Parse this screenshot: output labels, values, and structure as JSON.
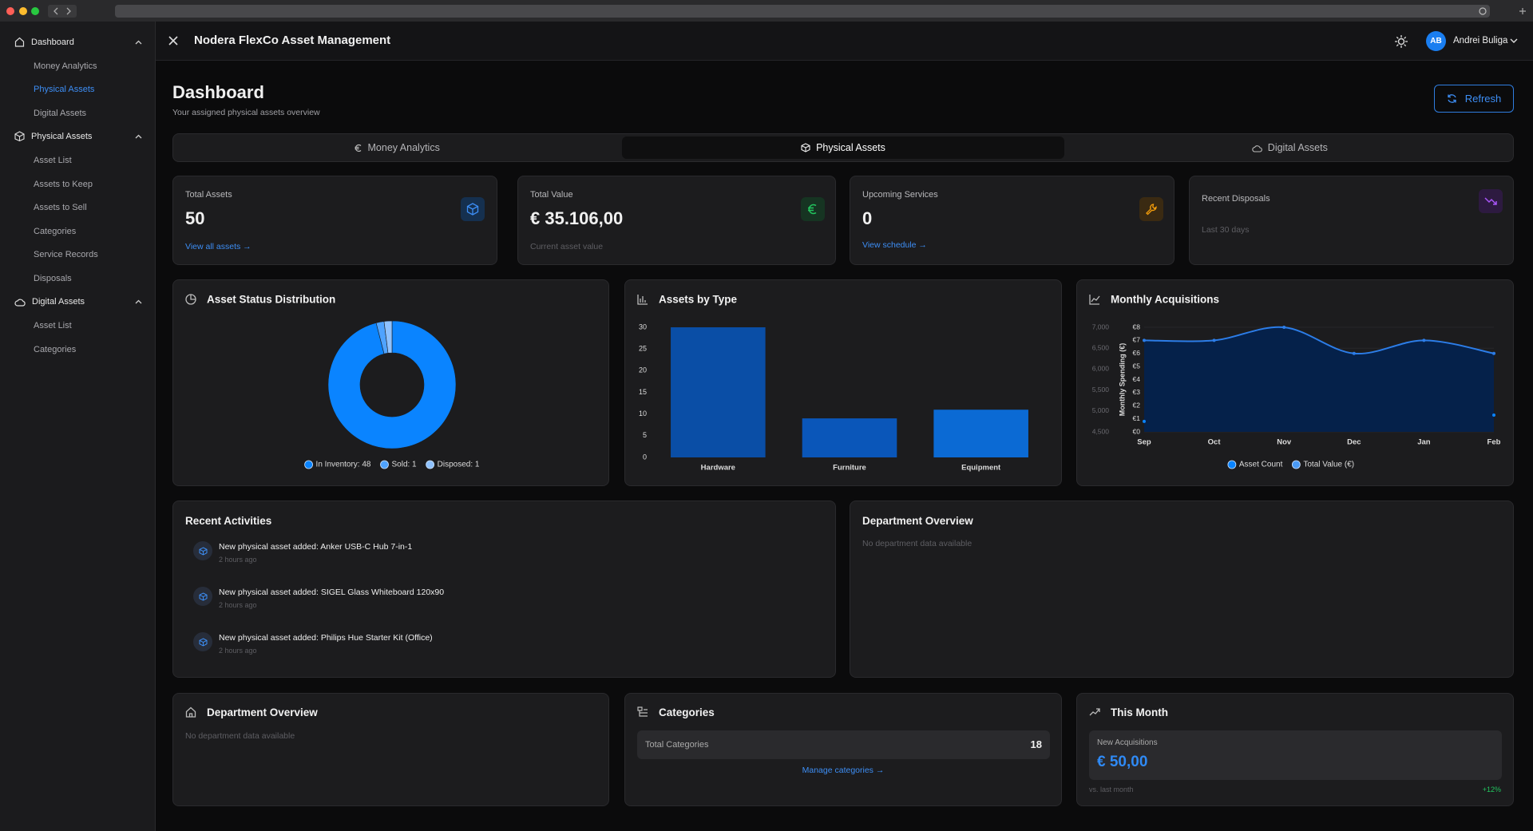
{
  "sidebar": {
    "sections": [
      {
        "label": "Dashboard",
        "items": [
          "Money Analytics",
          "Physical Assets",
          "Digital Assets"
        ],
        "active_item": 1
      },
      {
        "label": "Physical Assets",
        "items": [
          "Asset List",
          "Assets to Keep",
          "Assets to Sell",
          "Categories",
          "Service Records",
          "Disposals"
        ]
      },
      {
        "label": "Digital Assets",
        "items": [
          "Asset List",
          "Categories"
        ]
      }
    ]
  },
  "header": {
    "title": "Nodera FlexCo Asset Management",
    "user_initials": "AB",
    "user_name": "Andrei Buliga"
  },
  "page": {
    "title": "Dashboard",
    "subtitle": "Your assigned physical assets overview",
    "refresh": "Refresh"
  },
  "tabs": {
    "items": [
      "Money Analytics",
      "Physical Assets",
      "Digital Assets"
    ],
    "active": 1
  },
  "stats": [
    {
      "label": "Total Assets",
      "value": 50,
      "link": "View all assets →"
    },
    {
      "label": "Total Value",
      "value": "€ 35.106,00",
      "note": "Current asset value"
    },
    {
      "label": "Upcoming Services",
      "value": 0,
      "link": "View schedule →"
    },
    {
      "label": "Recent Disposals",
      "note": "Last 30 days"
    }
  ],
  "status_chart": {
    "type": "pie",
    "title": "Asset Status Distribution",
    "donut": true,
    "values": [
      48,
      1,
      1
    ],
    "value_labels": [
      "In Inventory: 48",
      "Sold: 1",
      "Disposed: 1"
    ],
    "colors": [
      "#0a84ff",
      "#4fa3ff",
      "#8fc2ff"
    ]
  },
  "type_chart": {
    "type": "bar",
    "title": "Assets by Type",
    "categories": [
      "Hardware",
      "Furniture",
      "Equipment"
    ],
    "values": [
      30,
      9,
      11
    ],
    "colors": [
      "#0a4ea6",
      "#0a56b9",
      "#0b6ad4"
    ],
    "ylim": [
      0,
      30
    ],
    "yticks": [
      0,
      5,
      10,
      15,
      20,
      25,
      30
    ]
  },
  "acquisitions_chart": {
    "type": "line",
    "title": "Monthly Acquisitions",
    "categories": [
      "Sep",
      "Oct",
      "Nov",
      "Dec",
      "Jan",
      "Feb"
    ],
    "ylim": [
      4500,
      7000
    ],
    "yticks": [
      {
        "value": 4500,
        "label": "4,500"
      },
      {
        "value": 5000,
        "label": "5,000"
      },
      {
        "value": 5500,
        "label": "5,500"
      },
      {
        "value": 6000,
        "label": "6,000"
      },
      {
        "value": 6500,
        "label": "6,500"
      },
      {
        "value": 7000,
        "label": "7,000"
      }
    ],
    "y2lim": [
      0,
      8
    ],
    "y2ticks": [
      {
        "value": 0,
        "label": "€0"
      },
      {
        "value": 1,
        "label": "€1"
      },
      {
        "value": 2,
        "label": "€2"
      },
      {
        "value": 3,
        "label": "€3"
      },
      {
        "value": 4,
        "label": "€4"
      },
      {
        "value": 5,
        "label": "€5"
      },
      {
        "value": 6,
        "label": "€6"
      },
      {
        "value": 7,
        "label": "€7"
      },
      {
        "value": 8,
        "label": "€8"
      }
    ],
    "y2label": "Monthly Spending (€)",
    "grid": true,
    "series": [
      {
        "name": "Asset Count",
        "color": "#0a84ff",
        "values": [
          4750,
          null,
          null,
          null,
          null,
          4900
        ]
      },
      {
        "name": "Total Value (€)",
        "color": "#4a9af5",
        "line_color": "#2c7de8",
        "fill": "#05214a",
        "axis": "y2",
        "values": [
          7,
          7,
          8,
          6,
          7,
          6
        ]
      }
    ]
  },
  "activities": {
    "title": "Recent Activities",
    "items": [
      {
        "text": "New physical asset added: Anker USB-C Hub 7-in-1",
        "time": "2 hours ago"
      },
      {
        "text": "New physical asset added: SIGEL Glass Whiteboard 120x90",
        "time": "2 hours ago"
      },
      {
        "text": "New physical asset added: Philips Hue Starter Kit (Office)",
        "time": "2 hours ago"
      }
    ]
  },
  "department_overview": {
    "title": "Department Overview",
    "empty": "No department data available"
  },
  "department_overview_bottom": {
    "title": "Department Overview",
    "empty": "No department data available"
  },
  "categories": {
    "title": "Categories",
    "label": "Total Categories",
    "count": 18,
    "link": "Manage categories →"
  },
  "this_month": {
    "title": "This Month",
    "label": "New Acquisitions",
    "value": "€ 50,00",
    "comparison": "vs. last month",
    "change": "+12%"
  }
}
